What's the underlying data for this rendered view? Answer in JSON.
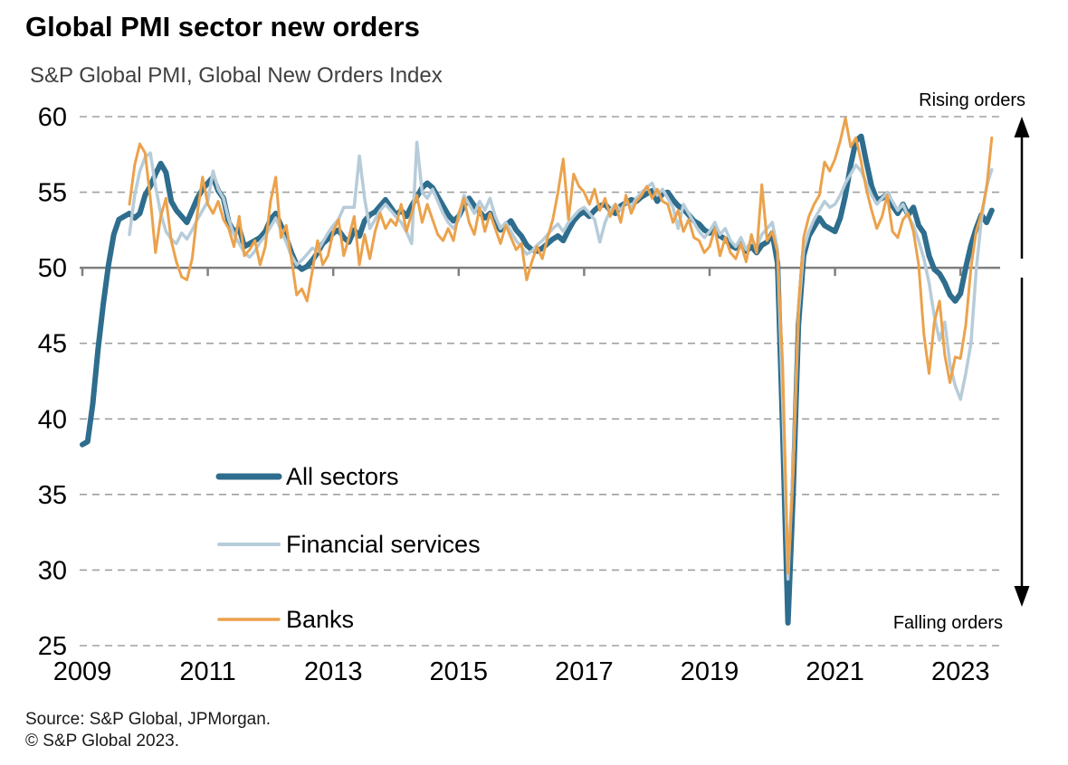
{
  "title": "Global PMI sector new orders",
  "subtitle": "S&P Global PMI, Global New Orders Index",
  "annotations": {
    "rising": "Rising orders",
    "falling": "Falling orders"
  },
  "source_line1": "Source: S&P Global, JPMorgan.",
  "source_line2": "© S&P Global 2023.",
  "colors": {
    "all_sectors": "#2e6d8d",
    "financial_services": "#b7ccd9",
    "banks": "#eba24c",
    "baseline": "#7f7f7f",
    "gridline": "#a0a0a0",
    "arrow": "#000000"
  },
  "chart_data": {
    "type": "line",
    "title": "Global PMI sector new orders",
    "subtitle": "S&P Global PMI, Global New Orders Index",
    "x_start": "2009-01",
    "x_frequency": "monthly",
    "x_end": "2023-07",
    "x_tick_labels": [
      "2009",
      "2011",
      "2013",
      "2015",
      "2017",
      "2019",
      "2021",
      "2023"
    ],
    "ylim": [
      25,
      60
    ],
    "y_ticks": [
      60,
      55,
      50,
      45,
      40,
      35,
      30,
      25
    ],
    "baseline": 50,
    "grid": "horizontal-dashed",
    "legend_position": "inside-lower-left",
    "series": [
      {
        "name": "All sectors",
        "color": "#2e6d8d",
        "line_width": 6,
        "start_month_index": 0,
        "values": [
          38.3,
          38.5,
          41.0,
          44.6,
          47.6,
          50.2,
          52.2,
          53.2,
          53.4,
          53.6,
          53.3,
          53.6,
          54.8,
          55.4,
          56.2,
          56.9,
          56.3,
          54.4,
          53.8,
          53.4,
          53.0,
          53.8,
          54.6,
          55.2,
          55.6,
          56.0,
          55.1,
          54.6,
          53.0,
          52.4,
          52.6,
          51.4,
          51.6,
          51.8,
          52.0,
          52.4,
          53.2,
          53.6,
          52.8,
          52.0,
          51.0,
          50.2,
          49.9,
          50.1,
          50.5,
          51.0,
          51.6,
          51.9,
          52.3,
          52.5,
          52.0,
          51.7,
          52.5,
          52.1,
          53.1,
          53.5,
          53.7,
          54.1,
          54.5,
          54.0,
          53.5,
          53.8,
          53.4,
          54.1,
          54.7,
          55.3,
          55.6,
          55.3,
          54.7,
          54.1,
          53.5,
          53.1,
          53.4,
          54.1,
          54.6,
          54.1,
          53.7,
          53.3,
          53.6,
          53.1,
          52.5,
          52.8,
          53.1,
          52.5,
          52.1,
          51.5,
          51.2,
          51.1,
          51.3,
          51.6,
          51.9,
          52.1,
          51.8,
          52.5,
          53.1,
          53.5,
          53.7,
          53.4,
          53.8,
          54.1,
          54.2,
          53.8,
          53.6,
          54.1,
          54.3,
          54.5,
          54.4,
          54.7,
          54.9,
          55.1,
          54.4,
          54.9,
          55.0,
          54.5,
          54.1,
          53.9,
          53.5,
          53.1,
          52.9,
          52.5,
          52.3,
          52.6,
          52.1,
          51.9,
          51.5,
          51.3,
          51.6,
          51.1,
          51.4,
          51.0,
          51.5,
          51.7,
          52.3,
          50.3,
          39.2,
          26.5,
          35.2,
          46.2,
          50.8,
          52.1,
          52.7,
          53.3,
          52.8,
          52.6,
          52.4,
          53.3,
          54.8,
          56.8,
          58.4,
          58.7,
          57.0,
          55.4,
          54.5,
          54.6,
          54.9,
          54.1,
          53.6,
          54.2,
          53.5,
          54.0,
          52.8,
          52.3,
          50.8,
          49.9,
          49.6,
          49.0,
          48.2,
          47.8,
          48.3,
          50.0,
          51.5,
          52.6,
          53.5,
          53.0,
          53.8
        ]
      },
      {
        "name": "Financial services",
        "color": "#b7ccd9",
        "line_width": 3.5,
        "start_month_index": 9,
        "values": [
          52.2,
          54.8,
          56.4,
          57.3,
          57.6,
          55.4,
          53.6,
          52.4,
          51.9,
          51.6,
          52.3,
          51.9,
          52.5,
          53.2,
          53.8,
          54.4,
          56.4,
          55.2,
          54.6,
          53.2,
          52.2,
          51.6,
          51.0,
          50.7,
          51.1,
          51.7,
          52.1,
          52.7,
          53.3,
          52.5,
          51.7,
          50.8,
          50.2,
          50.5,
          50.9,
          51.3,
          51.1,
          51.7,
          52.3,
          52.8,
          53.2,
          54.0,
          54.0,
          54.0,
          57.4,
          54.6,
          52.6,
          53.2,
          53.8,
          54.2,
          53.8,
          53.4,
          53.0,
          52.4,
          51.6,
          58.3,
          55.0,
          54.6,
          55.2,
          54.4,
          53.6,
          53.0,
          52.6,
          53.2,
          54.8,
          54.2,
          53.6,
          54.4,
          53.8,
          54.6,
          53.4,
          52.6,
          53.0,
          52.4,
          51.8,
          51.4,
          50.9,
          51.1,
          51.5,
          51.8,
          52.2,
          52.6,
          52.9,
          52.4,
          53.0,
          53.4,
          53.8,
          54.0,
          53.6,
          53.2,
          51.7,
          53.0,
          53.8,
          54.2,
          53.8,
          54.4,
          54.0,
          54.6,
          55.0,
          55.3,
          55.6,
          54.8,
          55.2,
          54.6,
          54.0,
          52.6,
          54.2,
          53.6,
          53.0,
          52.4,
          52.0,
          52.4,
          53.0,
          52.2,
          52.6,
          51.8,
          51.4,
          52.0,
          51.2,
          51.8,
          51.4,
          52.2,
          52.6,
          53.0,
          51.2,
          41.0,
          29.4,
          37.0,
          47.0,
          51.2,
          52.4,
          53.2,
          53.8,
          54.4,
          54.0,
          54.2,
          54.8,
          55.6,
          56.2,
          56.8,
          56.4,
          55.6,
          54.8,
          54.2,
          54.6,
          55.0,
          54.4,
          53.8,
          54.2,
          53.4,
          52.8,
          51.8,
          50.6,
          49.0,
          46.8,
          45.2,
          46.4,
          43.6,
          42.2,
          41.3,
          43.0,
          45.0,
          49.8,
          53.2,
          55.4,
          56.5
        ]
      },
      {
        "name": "Banks",
        "color": "#eba24c",
        "line_width": 3,
        "start_month_index": 9,
        "values": [
          54.2,
          56.8,
          58.2,
          57.6,
          54.6,
          51.0,
          53.4,
          54.6,
          51.8,
          50.4,
          49.4,
          49.2,
          50.6,
          53.6,
          56.0,
          54.2,
          53.6,
          54.4,
          53.2,
          52.6,
          51.4,
          53.4,
          50.8,
          51.2,
          51.8,
          50.2,
          51.4,
          54.4,
          56.0,
          52.0,
          52.8,
          50.6,
          48.2,
          48.6,
          47.8,
          49.8,
          51.8,
          50.2,
          50.8,
          52.4,
          53.2,
          50.8,
          52.0,
          53.4,
          50.2,
          52.2,
          50.6,
          52.4,
          53.6,
          52.6,
          53.2,
          52.8,
          54.2,
          52.4,
          53.6,
          54.8,
          53.0,
          54.2,
          53.2,
          52.2,
          51.8,
          52.6,
          51.8,
          53.6,
          54.6,
          53.0,
          52.2,
          54.0,
          52.4,
          53.6,
          52.6,
          51.6,
          52.8,
          52.0,
          51.2,
          51.6,
          49.2,
          50.4,
          51.4,
          50.6,
          52.0,
          53.2,
          55.0,
          57.2,
          53.2,
          56.2,
          55.4,
          55.0,
          54.2,
          55.2,
          53.8,
          54.6,
          53.4,
          54.2,
          53.0,
          54.8,
          53.6,
          54.4,
          54.8,
          55.4,
          54.6,
          55.2,
          54.4,
          54.2,
          53.0,
          53.8,
          52.4,
          53.2,
          52.0,
          51.8,
          51.0,
          51.4,
          52.6,
          50.8,
          52.0,
          51.0,
          50.6,
          51.6,
          50.4,
          52.2,
          51.0,
          55.5,
          51.8,
          52.4,
          51.0,
          43.5,
          29.8,
          36.5,
          47.5,
          52.0,
          53.4,
          54.2,
          54.8,
          57.0,
          56.4,
          57.2,
          58.4,
          59.9,
          58.0,
          58.6,
          57.0,
          55.2,
          53.8,
          52.6,
          53.4,
          54.8,
          52.4,
          52.0,
          53.2,
          53.6,
          52.4,
          50.2,
          45.6,
          43.0,
          46.4,
          47.8,
          44.2,
          42.4,
          44.1,
          44.0,
          46.2,
          50.0,
          52.4,
          53.6,
          55.3,
          58.6
        ]
      }
    ]
  }
}
